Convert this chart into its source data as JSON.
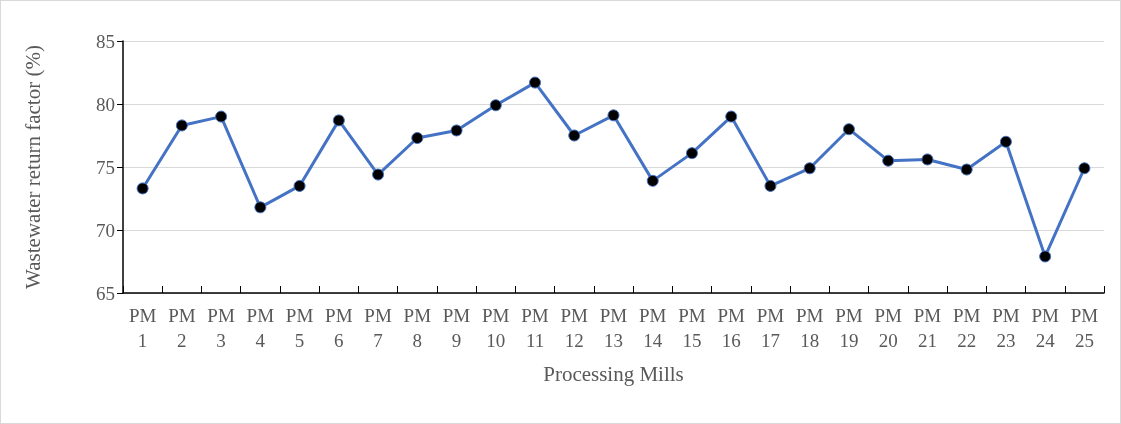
{
  "chart_data": {
    "type": "line",
    "xlabel": "Processing Mills",
    "ylabel": "Wastewater return factor (%)",
    "categories": [
      "PM 1",
      "PM 2",
      "PM 3",
      "PM 4",
      "PM 5",
      "PM 6",
      "PM 7",
      "PM 8",
      "PM 9",
      "PM 10",
      "PM 11",
      "PM 12",
      "PM 13",
      "PM 14",
      "PM 15",
      "PM 16",
      "PM 17",
      "PM 18",
      "PM 19",
      "PM 20",
      "PM 21",
      "PM 22",
      "PM 23",
      "PM 24",
      "PM 25"
    ],
    "series": [
      {
        "color": "#4472c4",
        "values": [
          73.3,
          78.3,
          79.0,
          71.8,
          73.5,
          78.7,
          74.4,
          77.3,
          77.9,
          79.9,
          81.7,
          77.5,
          79.1,
          73.9,
          76.1,
          79.0,
          73.5,
          74.9,
          78.0,
          75.5,
          75.6,
          74.8,
          77.0,
          67.9,
          74.9
        ]
      }
    ],
    "ylim": [
      65,
      85
    ],
    "yticks": [
      65,
      70,
      75,
      80,
      85
    ],
    "grid": "y",
    "marker": "circle",
    "line_style": "solid"
  }
}
